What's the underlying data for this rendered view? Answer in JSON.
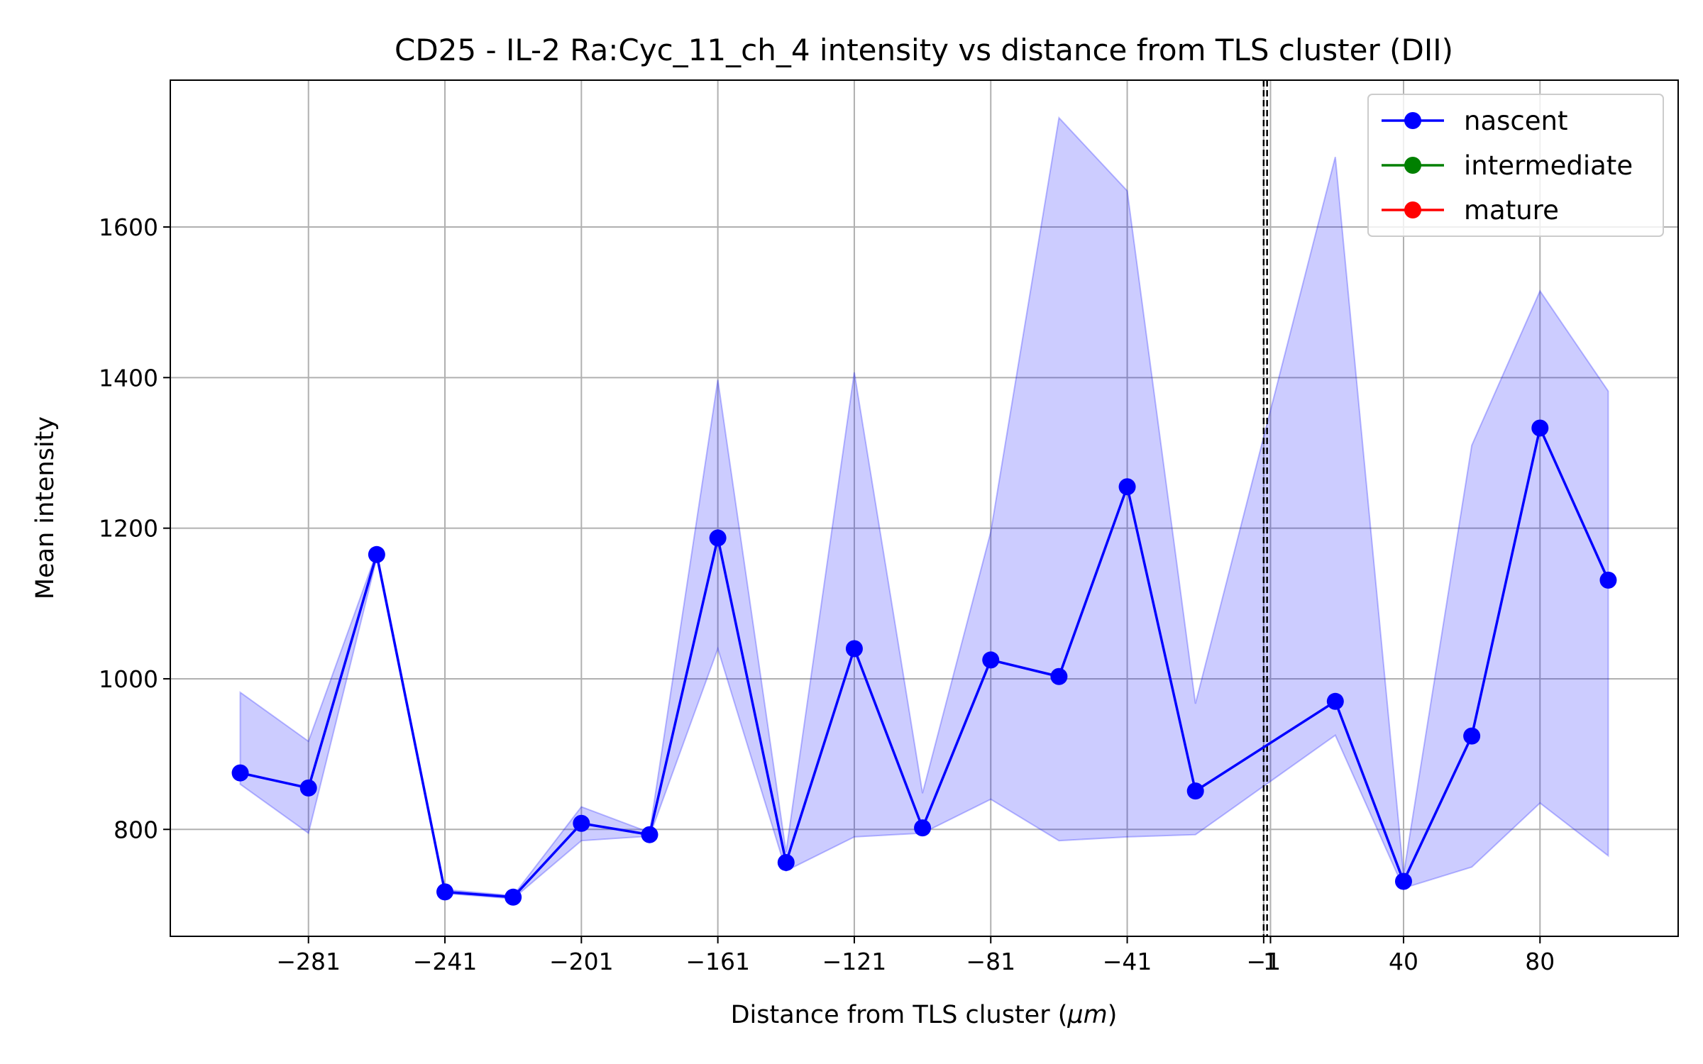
{
  "chart_data": {
    "type": "line",
    "title": "CD25 - IL-2 Ra:Cyc_11_ch_4 intensity vs distance from TLS cluster (DII)",
    "xlabel_prefix": "Distance from TLS cluster (",
    "xlabel_unit": "μm",
    "xlabel_suffix": ")",
    "ylabel": "Mean intensity",
    "xlim": [
      -321.5,
      120.5
    ],
    "ylim": [
      658,
      1795
    ],
    "x_ticks": [
      -281,
      -241,
      -201,
      -161,
      -121,
      -81,
      -41,
      -1,
      1,
      40,
      80
    ],
    "x_tick_labels": [
      "−281",
      "−241",
      "−201",
      "−161",
      "−121",
      "−81",
      "−41",
      "−1",
      "1",
      "40",
      "80"
    ],
    "y_ticks": [
      800,
      1000,
      1200,
      1400,
      1600
    ],
    "y_tick_labels": [
      "800",
      "1000",
      "1200",
      "1400",
      "1600"
    ],
    "grid": true,
    "reference_lines": [
      -1,
      0
    ],
    "legend_position": "top-right",
    "series": [
      {
        "name": "nascent",
        "color": "#0000ff",
        "band_color": "#0000ff",
        "x": [
          -301,
          -281,
          -261,
          -241,
          -221,
          -201,
          -181,
          -161,
          -141,
          -121,
          -101,
          -81,
          -61,
          -41,
          -21,
          20,
          40,
          60,
          80,
          100
        ],
        "y": [
          875,
          855,
          1165,
          717,
          710,
          808,
          793,
          1187,
          756,
          1040,
          802,
          1025,
          1003,
          1255,
          851,
          970,
          731,
          924,
          1333,
          1131
        ],
        "band_low": [
          860,
          795,
          1160,
          715,
          708,
          785,
          791,
          1040,
          745,
          790,
          795,
          840,
          785,
          790,
          793,
          925,
          722,
          750,
          835,
          765
        ],
        "band_high": [
          982,
          917,
          1168,
          720,
          712,
          830,
          796,
          1397,
          770,
          1407,
          848,
          1195,
          1745,
          1648,
          967,
          1693,
          740,
          1310,
          1515,
          1382
        ]
      },
      {
        "name": "intermediate",
        "color": "#008000",
        "x": [],
        "y": []
      },
      {
        "name": "mature",
        "color": "#ff0000",
        "x": [],
        "y": []
      }
    ]
  }
}
